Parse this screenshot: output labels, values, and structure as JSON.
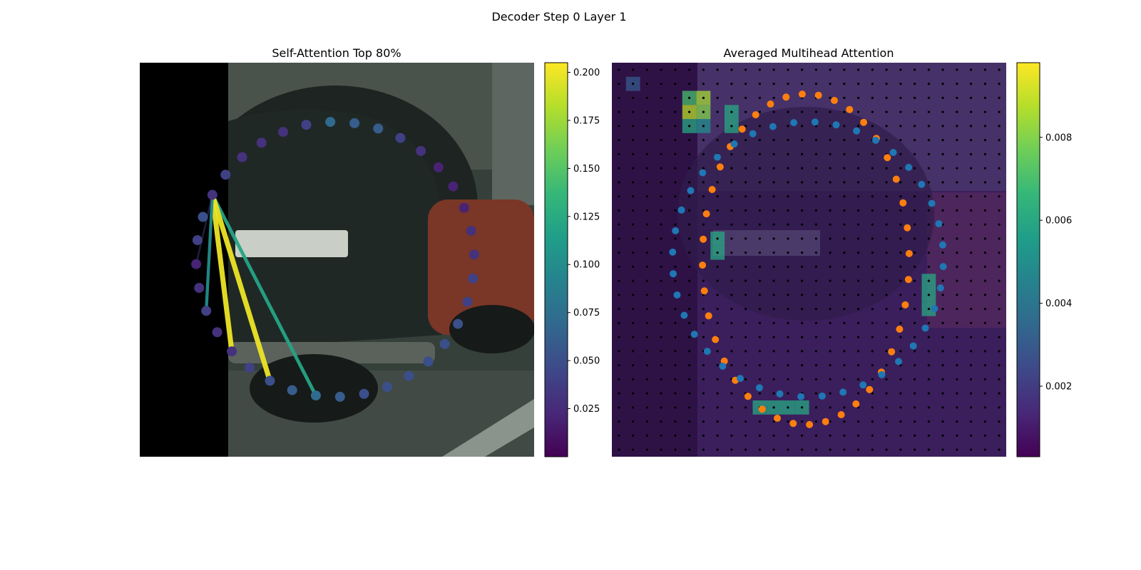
{
  "figure_title": "Decoder Step 0 Layer 1",
  "colors": {
    "viridis": [
      "#440154",
      "#482878",
      "#3e4989",
      "#31688e",
      "#26828e",
      "#1f9e89",
      "#35b779",
      "#6ece58",
      "#b5de2b",
      "#fde725"
    ],
    "query_points": "#1f77b4",
    "reference_points": "#ff7f0e",
    "grid_dots": "#000000"
  },
  "chart_data": [
    {
      "type": "scatter",
      "title": "Self-Attention Top 80%",
      "description_of_background": "camera image crop of parked cars, left strip black",
      "points": {
        "count": 36,
        "shape": "ellipse",
        "center": [
          470,
          364
        ],
        "radii": [
          195,
          193
        ],
        "source_index": 0,
        "source_angle_deg": -152,
        "values": [
          0.03,
          0.04,
          0.03,
          0.03,
          0.03,
          0.04,
          0.07,
          0.06,
          0.06,
          0.04,
          0.03,
          0.02,
          0.02,
          0.02,
          0.03,
          0.03,
          0.04,
          0.04,
          0.05,
          0.05,
          0.05,
          0.05,
          0.05,
          0.05,
          0.06,
          0.07,
          0.06,
          0.05,
          0.04,
          0.03,
          0.03,
          0.04,
          0.03,
          0.02,
          0.04,
          0.05
        ]
      },
      "attention_lines": [
        {
          "target_index": 25,
          "weight": 0.12
        },
        {
          "target_index": 27,
          "weight": 0.2
        },
        {
          "target_index": 29,
          "weight": 0.2
        },
        {
          "target_index": 31,
          "weight": 0.1
        },
        {
          "target_index": 33,
          "weight": 0.04
        }
      ],
      "colorbar": {
        "cmap": "viridis",
        "range": [
          0.0,
          0.205
        ],
        "ticks": [
          0.025,
          0.05,
          0.075,
          0.1,
          0.125,
          0.15,
          0.175,
          0.2
        ],
        "tick_labels": [
          "0.025",
          "0.050",
          "0.075",
          "0.100",
          "0.125",
          "0.150",
          "0.175",
          "0.200"
        ]
      }
    },
    {
      "type": "heatmap",
      "title": "Averaged Multihead Attention",
      "grid": {
        "rows": 28,
        "cols": 28
      },
      "heat_cells": [
        {
          "row": 1,
          "col": 1,
          "value": 0.003
        },
        {
          "row": 2,
          "col": 5,
          "value": 0.007
        },
        {
          "row": 2,
          "col": 6,
          "value": 0.0085
        },
        {
          "row": 3,
          "col": 5,
          "value": 0.0088
        },
        {
          "row": 3,
          "col": 6,
          "value": 0.008
        },
        {
          "row": 3,
          "col": 8,
          "value": 0.006
        },
        {
          "row": 4,
          "col": 5,
          "value": 0.006
        },
        {
          "row": 4,
          "col": 6,
          "value": 0.005
        },
        {
          "row": 4,
          "col": 8,
          "value": 0.006
        },
        {
          "row": 12,
          "col": 7,
          "value": 0.006
        },
        {
          "row": 13,
          "col": 7,
          "value": 0.006
        },
        {
          "row": 15,
          "col": 22,
          "value": 0.006
        },
        {
          "row": 16,
          "col": 22,
          "value": 0.006
        },
        {
          "row": 17,
          "col": 22,
          "value": 0.006
        },
        {
          "row": 24,
          "col": 10,
          "value": 0.006
        },
        {
          "row": 24,
          "col": 11,
          "value": 0.006
        },
        {
          "row": 24,
          "col": 12,
          "value": 0.006
        },
        {
          "row": 24,
          "col": 13,
          "value": 0.006
        }
      ],
      "query_points": {
        "count": 40,
        "center": [
          1133,
          364
        ],
        "radii": [
          190,
          193
        ]
      },
      "reference_points": {
        "count": 40,
        "center": [
          1130,
          364
        ],
        "radii": [
          145,
          232
        ]
      },
      "colorbar": {
        "cmap": "viridis",
        "range": [
          0.0003,
          0.0098
        ],
        "ticks": [
          0.002,
          0.004,
          0.006,
          0.008
        ],
        "tick_labels": [
          "0.002",
          "0.004",
          "0.006",
          "0.008"
        ]
      }
    }
  ]
}
